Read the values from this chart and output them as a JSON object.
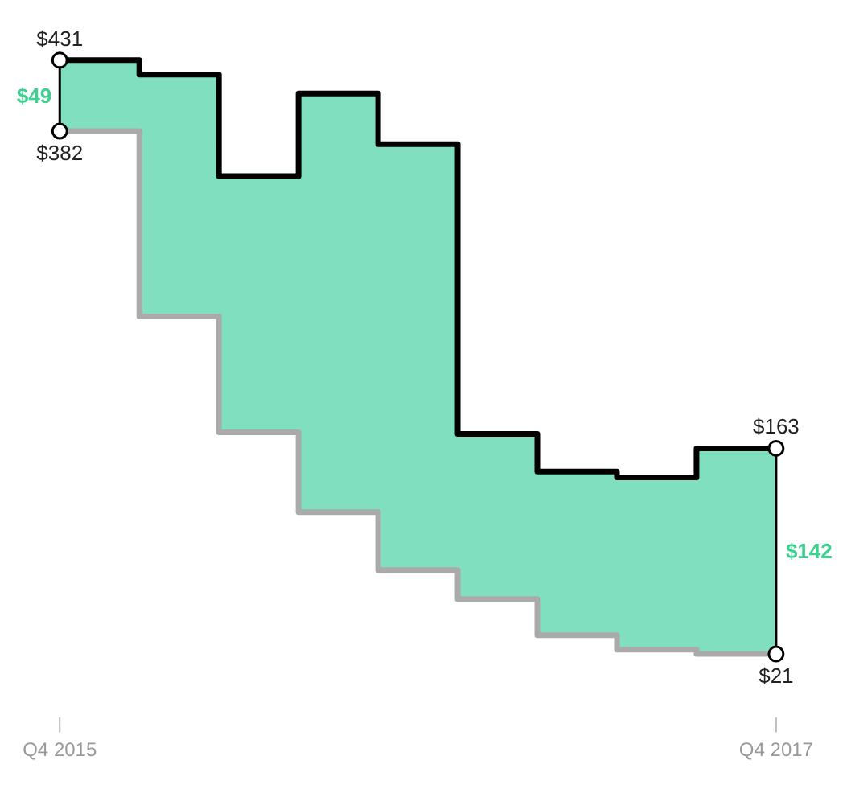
{
  "chart_data": {
    "type": "step",
    "categories": [
      "Q4 2015",
      null,
      null,
      null,
      null,
      null,
      null,
      null,
      null,
      "Q4 2017"
    ],
    "series": [
      {
        "color": "#000000",
        "values": [
          431,
          421,
          351,
          408,
          373,
          173,
          147,
          143,
          163,
          163
        ],
        "value_labels": [
          "$431",
          null,
          null,
          null,
          null,
          null,
          null,
          null,
          null,
          "$163"
        ],
        "lower": [
          382,
          254,
          174,
          119,
          79,
          59,
          34,
          24,
          21,
          21
        ],
        "upper": [
          431,
          421,
          351,
          408,
          373,
          173,
          147,
          143,
          163,
          163
        ]
      },
      {
        "color": "#aaaaaa",
        "values": [
          382,
          254,
          174,
          119,
          79,
          59,
          34,
          24,
          21,
          21
        ],
        "value_labels": [
          "$382",
          null,
          null,
          null,
          null,
          null,
          null,
          null,
          null,
          "$21"
        ]
      }
    ],
    "annotations": [
      "$49",
      "$142"
    ],
    "grid": false,
    "tick_labels": "x"
  }
}
